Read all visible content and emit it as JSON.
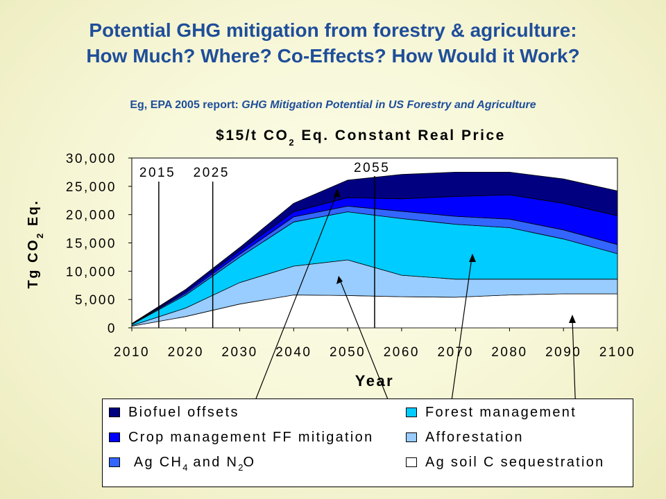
{
  "slide": {
    "title_line1": "Potential GHG mitigation from forestry & agriculture:",
    "title_line2": "How Much?  Where?  Co-Effects?  How Would it Work?",
    "subtitle_prefix": "Eg, EPA 2005 report: ",
    "subtitle_italic": "GHG Mitigation Potential in US Forestry and Agriculture"
  },
  "chart_data": {
    "type": "area",
    "title_parts": [
      "$15/t CO",
      "2",
      " Eq. Constant Real Price"
    ],
    "xlabel": "Year",
    "ylabel_parts": [
      "Tg CO",
      "2",
      " Eq."
    ],
    "x": [
      2010,
      2020,
      2030,
      2040,
      2050,
      2060,
      2070,
      2080,
      2090,
      2100
    ],
    "xlim": [
      2010,
      2100
    ],
    "ylim": [
      0,
      30000
    ],
    "y_ticks": [
      "0",
      "5,000",
      "10,000",
      "15,000",
      "20,000",
      "25,000",
      "30,000"
    ],
    "x_ticks": [
      "2010",
      "2020",
      "2030",
      "2040",
      "2050",
      "2060",
      "2070",
      "2080",
      "2090",
      "2100"
    ],
    "stacking_order": "bottom-to-top",
    "series": [
      {
        "name": "Ag soil C sequestration",
        "color": "#ffffff",
        "values": [
          300,
          2000,
          4200,
          5800,
          5700,
          5500,
          5400,
          5800,
          6000,
          6000
        ]
      },
      {
        "name": "Afforestation",
        "color": "#99ccff",
        "values": [
          100,
          1500,
          3800,
          5100,
          6300,
          3800,
          3200,
          2800,
          2600,
          2600
        ]
      },
      {
        "name": "Forest management",
        "color": "#00ccff",
        "values": [
          200,
          2300,
          4500,
          7800,
          8500,
          10000,
          9700,
          9100,
          7100,
          4500
        ]
      },
      {
        "name": "Ag CH4 and N2O",
        "color": "#3366ff",
        "values": [
          60,
          300,
          500,
          900,
          1000,
          1300,
          1400,
          1500,
          1600,
          1600
        ]
      },
      {
        "name": "Crop management FF mitigation",
        "color": "#0000ff",
        "values": [
          40,
          300,
          600,
          900,
          1500,
          2200,
          3500,
          4300,
          4700,
          5100
        ]
      },
      {
        "name": "Biofuel offsets",
        "color": "#000080",
        "values": [
          50,
          400,
          600,
          1500,
          3100,
          4300,
          4300,
          4000,
          4300,
          4400
        ]
      }
    ],
    "vertical_markers": [
      {
        "x": 2015,
        "label": "2015"
      },
      {
        "x": 2025,
        "label": "2025"
      },
      {
        "x": 2055,
        "label": "2055"
      }
    ],
    "legend": {
      "left_column": [
        {
          "label": "Biofuel offsets",
          "color": "#000080"
        },
        {
          "label": "Crop management FF mitigation",
          "color": "#0000ff"
        },
        {
          "label_parts": [
            "Ag CH",
            "4",
            " and N",
            "2",
            "O"
          ],
          "color": "#3366ff"
        }
      ],
      "right_column": [
        {
          "label": "Forest management",
          "color": "#00ccff"
        },
        {
          "label": "Afforestation",
          "color": "#99ccff"
        },
        {
          "label": "Ag soil C sequestration",
          "color": "#ffffff"
        }
      ]
    },
    "grid": false,
    "legend_placement": "bottom"
  }
}
